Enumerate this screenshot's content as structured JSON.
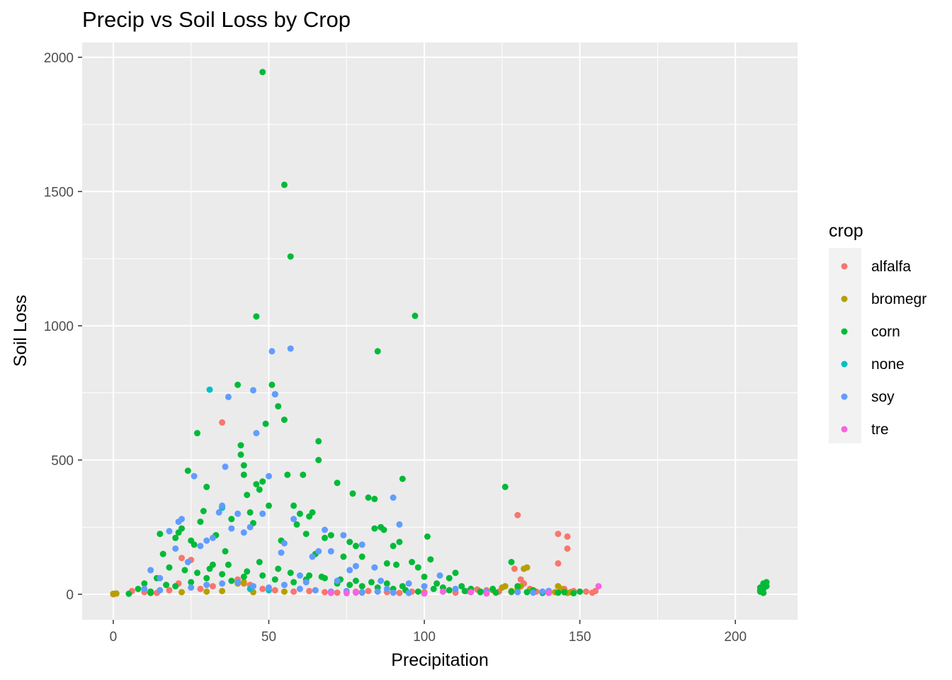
{
  "chart_data": {
    "type": "scatter",
    "title": "Precip vs Soil Loss by Crop",
    "xlabel": "Precipitation",
    "ylabel": "Soil Loss",
    "xlim": [
      -10,
      220
    ],
    "ylim": [
      -95,
      2055
    ],
    "xticks": [
      0,
      50,
      100,
      150,
      200
    ],
    "yticks": [
      0,
      500,
      1000,
      1500,
      2000
    ],
    "grid": true,
    "legend": {
      "title": "crop",
      "position": "right"
    },
    "series": [
      {
        "name": "alfalfa",
        "color": "#F8766D",
        "points": [
          [
            0,
            0
          ],
          [
            6,
            12
          ],
          [
            10,
            8
          ],
          [
            14,
            5
          ],
          [
            18,
            15
          ],
          [
            21,
            40
          ],
          [
            22,
            135
          ],
          [
            25,
            128
          ],
          [
            28,
            20
          ],
          [
            32,
            30
          ],
          [
            35,
            640
          ],
          [
            40,
            55
          ],
          [
            42,
            40
          ],
          [
            44,
            35
          ],
          [
            48,
            20
          ],
          [
            52,
            15
          ],
          [
            58,
            10
          ],
          [
            63,
            12
          ],
          [
            68,
            8
          ],
          [
            72,
            6
          ],
          [
            78,
            10
          ],
          [
            82,
            12
          ],
          [
            88,
            8
          ],
          [
            92,
            5
          ],
          [
            96,
            10
          ],
          [
            100,
            8
          ],
          [
            106,
            10
          ],
          [
            110,
            6
          ],
          [
            114,
            12
          ],
          [
            117,
            18
          ],
          [
            120,
            15
          ],
          [
            124,
            10
          ],
          [
            128,
            8
          ],
          [
            129,
            95
          ],
          [
            130,
            295
          ],
          [
            131,
            55
          ],
          [
            132,
            40
          ],
          [
            134,
            20
          ],
          [
            136,
            10
          ],
          [
            140,
            12
          ],
          [
            143,
            225
          ],
          [
            143,
            115
          ],
          [
            145,
            20
          ],
          [
            146,
            215
          ],
          [
            146,
            170
          ],
          [
            148,
            12
          ],
          [
            152,
            10
          ],
          [
            154,
            6
          ],
          [
            155,
            12
          ]
        ]
      },
      {
        "name": "bromegr",
        "color": "#B79F00",
        "points": [
          [
            0,
            2
          ],
          [
            1,
            3
          ],
          [
            22,
            8
          ],
          [
            30,
            10
          ],
          [
            35,
            12
          ],
          [
            40,
            40
          ],
          [
            42,
            45
          ],
          [
            45,
            8
          ],
          [
            55,
            10
          ],
          [
            80,
            6
          ],
          [
            100,
            5
          ],
          [
            118,
            10
          ],
          [
            122,
            15
          ],
          [
            125,
            25
          ],
          [
            126,
            30
          ],
          [
            128,
            12
          ],
          [
            130,
            20
          ],
          [
            131,
            30
          ],
          [
            132,
            95
          ],
          [
            133,
            100
          ],
          [
            134,
            15
          ],
          [
            140,
            10
          ],
          [
            142,
            8
          ],
          [
            143,
            30
          ],
          [
            144,
            20
          ],
          [
            145,
            10
          ],
          [
            146,
            5
          ],
          [
            147,
            8
          ]
        ]
      },
      {
        "name": "corn",
        "color": "#00BA38",
        "points": [
          [
            5,
            2
          ],
          [
            8,
            20
          ],
          [
            10,
            40
          ],
          [
            12,
            5
          ],
          [
            14,
            60
          ],
          [
            15,
            225
          ],
          [
            16,
            150
          ],
          [
            18,
            100
          ],
          [
            20,
            210
          ],
          [
            21,
            230
          ],
          [
            22,
            245
          ],
          [
            24,
            460
          ],
          [
            25,
            200
          ],
          [
            26,
            185
          ],
          [
            27,
            600
          ],
          [
            28,
            270
          ],
          [
            29,
            310
          ],
          [
            30,
            400
          ],
          [
            32,
            110
          ],
          [
            33,
            220
          ],
          [
            35,
            325
          ],
          [
            36,
            160
          ],
          [
            38,
            280
          ],
          [
            40,
            780
          ],
          [
            41,
            555
          ],
          [
            41,
            520
          ],
          [
            42,
            480
          ],
          [
            42,
            445
          ],
          [
            43,
            370
          ],
          [
            44,
            305
          ],
          [
            45,
            265
          ],
          [
            46,
            410
          ],
          [
            46,
            1035
          ],
          [
            47,
            390
          ],
          [
            48,
            1945
          ],
          [
            48,
            420
          ],
          [
            49,
            635
          ],
          [
            50,
            330
          ],
          [
            51,
            780
          ],
          [
            52,
            745
          ],
          [
            53,
            700
          ],
          [
            54,
            200
          ],
          [
            55,
            650
          ],
          [
            55,
            1525
          ],
          [
            56,
            445
          ],
          [
            57,
            1258
          ],
          [
            58,
            330
          ],
          [
            59,
            260
          ],
          [
            60,
            300
          ],
          [
            61,
            445
          ],
          [
            62,
            225
          ],
          [
            63,
            290
          ],
          [
            64,
            305
          ],
          [
            65,
            150
          ],
          [
            66,
            570
          ],
          [
            66,
            500
          ],
          [
            68,
            210
          ],
          [
            70,
            220
          ],
          [
            72,
            415
          ],
          [
            74,
            140
          ],
          [
            76,
            195
          ],
          [
            77,
            375
          ],
          [
            78,
            180
          ],
          [
            80,
            140
          ],
          [
            82,
            360
          ],
          [
            84,
            355
          ],
          [
            84,
            245
          ],
          [
            85,
            905
          ],
          [
            86,
            250
          ],
          [
            87,
            240
          ],
          [
            88,
            115
          ],
          [
            90,
            180
          ],
          [
            91,
            110
          ],
          [
            92,
            195
          ],
          [
            93,
            430
          ],
          [
            96,
            120
          ],
          [
            97,
            1037
          ],
          [
            98,
            100
          ],
          [
            100,
            65
          ],
          [
            101,
            215
          ],
          [
            102,
            130
          ],
          [
            104,
            40
          ],
          [
            106,
            25
          ],
          [
            108,
            60
          ],
          [
            110,
            80
          ],
          [
            112,
            30
          ],
          [
            115,
            20
          ],
          [
            118,
            10
          ],
          [
            122,
            20
          ],
          [
            126,
            400
          ],
          [
            128,
            120
          ],
          [
            130,
            30
          ],
          [
            135,
            15
          ],
          [
            140,
            10
          ],
          [
            145,
            8
          ],
          [
            150,
            10
          ],
          [
            20,
            30
          ],
          [
            25,
            45
          ],
          [
            30,
            60
          ],
          [
            35,
            75
          ],
          [
            38,
            50
          ],
          [
            42,
            65
          ],
          [
            48,
            70
          ],
          [
            52,
            55
          ],
          [
            58,
            45
          ],
          [
            62,
            55
          ],
          [
            68,
            60
          ],
          [
            72,
            40
          ],
          [
            76,
            35
          ],
          [
            80,
            30
          ],
          [
            85,
            25
          ],
          [
            90,
            20
          ],
          [
            94,
            15
          ],
          [
            98,
            10
          ],
          [
            12,
            10
          ],
          [
            17,
            35
          ],
          [
            23,
            90
          ],
          [
            27,
            80
          ],
          [
            31,
            95
          ],
          [
            37,
            110
          ],
          [
            43,
            85
          ],
          [
            47,
            120
          ],
          [
            53,
            95
          ],
          [
            57,
            80
          ],
          [
            63,
            70
          ],
          [
            67,
            65
          ],
          [
            73,
            55
          ],
          [
            78,
            50
          ],
          [
            83,
            45
          ],
          [
            88,
            40
          ],
          [
            93,
            30
          ],
          [
            103,
            20
          ],
          [
            108,
            15
          ],
          [
            113,
            12
          ],
          [
            118,
            8
          ],
          [
            123,
            6
          ],
          [
            128,
            10
          ],
          [
            133,
            8
          ],
          [
            138,
            5
          ],
          [
            143,
            6
          ],
          [
            148,
            4
          ],
          [
            208,
            10
          ],
          [
            208,
            25
          ],
          [
            209,
            40
          ],
          [
            209,
            5
          ],
          [
            210,
            45
          ],
          [
            208,
            15
          ],
          [
            209,
            20
          ],
          [
            210,
            30
          ]
        ]
      },
      {
        "name": "none",
        "color": "#00BFC4",
        "points": [
          [
            31,
            762
          ],
          [
            35,
            322
          ],
          [
            44,
            20
          ],
          [
            50,
            15
          ]
        ]
      },
      {
        "name": "soy",
        "color": "#619CFF",
        "points": [
          [
            10,
            20
          ],
          [
            12,
            90
          ],
          [
            15,
            60
          ],
          [
            18,
            235
          ],
          [
            20,
            170
          ],
          [
            21,
            270
          ],
          [
            22,
            280
          ],
          [
            24,
            120
          ],
          [
            26,
            440
          ],
          [
            28,
            180
          ],
          [
            30,
            200
          ],
          [
            32,
            210
          ],
          [
            34,
            305
          ],
          [
            35,
            330
          ],
          [
            36,
            475
          ],
          [
            37,
            735
          ],
          [
            38,
            245
          ],
          [
            40,
            300
          ],
          [
            42,
            230
          ],
          [
            44,
            250
          ],
          [
            45,
            760
          ],
          [
            46,
            600
          ],
          [
            48,
            300
          ],
          [
            50,
            440
          ],
          [
            51,
            905
          ],
          [
            52,
            745
          ],
          [
            54,
            155
          ],
          [
            55,
            190
          ],
          [
            57,
            915
          ],
          [
            58,
            280
          ],
          [
            60,
            70
          ],
          [
            62,
            45
          ],
          [
            64,
            140
          ],
          [
            66,
            160
          ],
          [
            68,
            240
          ],
          [
            70,
            160
          ],
          [
            72,
            50
          ],
          [
            74,
            220
          ],
          [
            76,
            90
          ],
          [
            78,
            105
          ],
          [
            80,
            185
          ],
          [
            84,
            100
          ],
          [
            86,
            50
          ],
          [
            88,
            20
          ],
          [
            90,
            360
          ],
          [
            92,
            260
          ],
          [
            95,
            40
          ],
          [
            100,
            30
          ],
          [
            105,
            70
          ],
          [
            110,
            20
          ],
          [
            15,
            15
          ],
          [
            25,
            25
          ],
          [
            30,
            35
          ],
          [
            35,
            40
          ],
          [
            40,
            45
          ],
          [
            45,
            30
          ],
          [
            50,
            25
          ],
          [
            55,
            35
          ],
          [
            60,
            20
          ],
          [
            65,
            15
          ],
          [
            70,
            10
          ],
          [
            75,
            12
          ],
          [
            80,
            8
          ],
          [
            85,
            10
          ],
          [
            90,
            6
          ],
          [
            95,
            5
          ],
          [
            120,
            10
          ],
          [
            130,
            8
          ],
          [
            135,
            6
          ],
          [
            138,
            10
          ],
          [
            140,
            12
          ]
        ]
      },
      {
        "name": "tre",
        "color": "#F564E3",
        "points": [
          [
            70,
            5
          ],
          [
            75,
            4
          ],
          [
            78,
            6
          ],
          [
            100,
            3
          ],
          [
            106,
            10
          ],
          [
            115,
            8
          ],
          [
            120,
            3
          ],
          [
            140,
            5
          ],
          [
            156,
            30
          ]
        ]
      }
    ]
  }
}
